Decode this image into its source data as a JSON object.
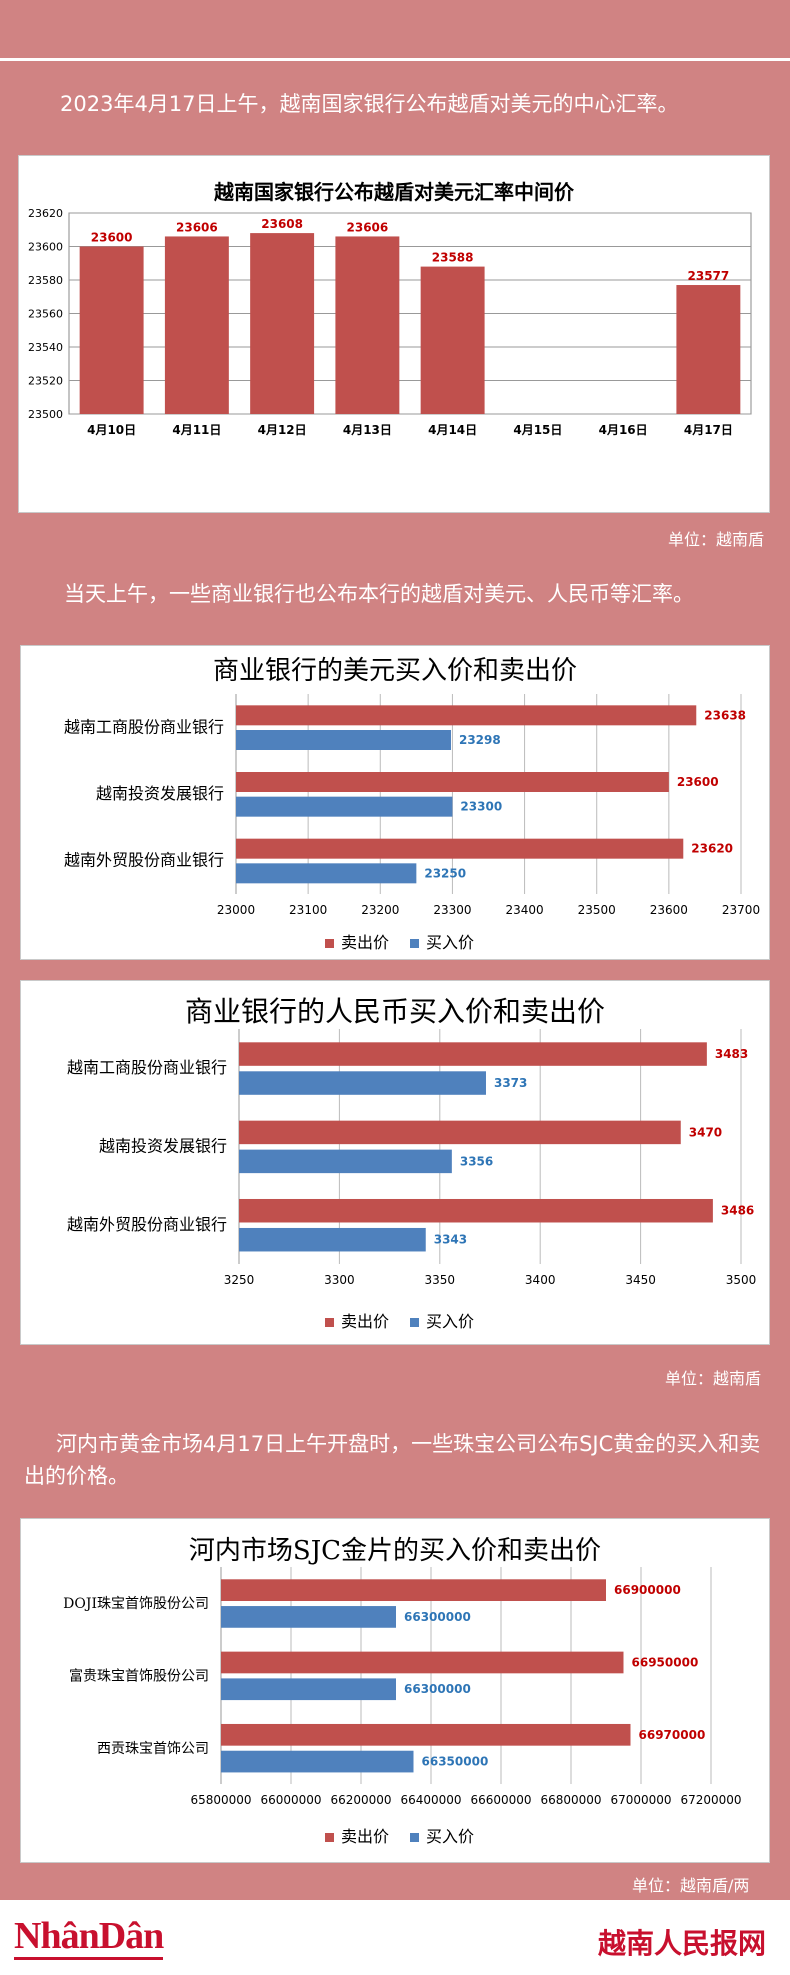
{
  "intro1": "2023年4月17日上午，越南国家银行公布越盾对美元的中心汇率。",
  "intro2": "当天上午，一些商业银行也公布本行的越盾对美元、人民币等汇率。",
  "intro3": "河内市黄金市场4月17日上午开盘时，一些珠宝公司公布SJC黄金的买入和卖出的价格。",
  "unit1": "单位：越南盾",
  "unit2": "单位：越南盾",
  "unit3": "单位：越南盾/两",
  "footer": {
    "logo_left": "NhânDân",
    "logo_right": "越南人民报网"
  },
  "colors": {
    "red": "#c0504d",
    "blue": "#4f81bd",
    "red_label": "#c00000",
    "blue_label": "#2e75b6"
  },
  "chart_data": [
    {
      "type": "bar",
      "title": "越南国家银行公布越盾对美元汇率中间价",
      "categories": [
        "4月10日",
        "4月11日",
        "4月12日",
        "4月13日",
        "4月14日",
        "4月15日",
        "4月16日",
        "4月17日"
      ],
      "values": [
        23600,
        23606,
        23608,
        23606,
        23588,
        null,
        null,
        23577
      ],
      "value_labels": [
        "23600",
        "23606",
        "23608",
        "23606",
        "23588",
        "",
        "",
        "23577"
      ],
      "ylim": [
        23500,
        23620
      ],
      "yticks": [
        "23500",
        "23520",
        "23540",
        "23560",
        "23580",
        "23600",
        "23620"
      ],
      "grid": true
    },
    {
      "type": "bar",
      "orientation": "horizontal",
      "title": "商业银行的美元买入价和卖出价",
      "categories": [
        "越南工商股份商业银行",
        "越南投资发展银行",
        "越南外贸股份商业银行"
      ],
      "series": [
        {
          "name": "卖出价",
          "values": [
            23638,
            23600,
            23620
          ]
        },
        {
          "name": "买入价",
          "values": [
            23298,
            23300,
            23250
          ]
        }
      ],
      "xlim": [
        23000,
        23700
      ],
      "xticks": [
        "23000",
        "23100",
        "23200",
        "23300",
        "23400",
        "23500",
        "23600",
        "23700"
      ],
      "legend": "bottom",
      "grid": true
    },
    {
      "type": "bar",
      "orientation": "horizontal",
      "title": "商业银行的人民币买入价和卖出价",
      "categories": [
        "越南工商股份商业银行",
        "越南投资发展银行",
        "越南外贸股份商业银行"
      ],
      "series": [
        {
          "name": "卖出价",
          "values": [
            3483,
            3470,
            3486
          ]
        },
        {
          "name": "买入价",
          "values": [
            3373,
            3356,
            3343
          ]
        }
      ],
      "xlim": [
        3250,
        3500
      ],
      "xticks": [
        "3250",
        "3300",
        "3350",
        "3400",
        "3450",
        "3500"
      ],
      "legend": "bottom",
      "grid": true
    },
    {
      "type": "bar",
      "orientation": "horizontal",
      "title": "河内市场SJC金片的买入价和卖出价",
      "categories": [
        "DOJI珠宝首饰股份公司",
        "富贵珠宝首饰股份公司",
        "西贡珠宝首饰公司"
      ],
      "series": [
        {
          "name": "卖出价",
          "values": [
            66900000,
            66950000,
            66970000
          ]
        },
        {
          "name": "买入价",
          "values": [
            66300000,
            66300000,
            66350000
          ]
        }
      ],
      "xlim": [
        65800000,
        67200000
      ],
      "xticks": [
        "65800000",
        "66000000",
        "66200000",
        "66400000",
        "66600000",
        "66800000",
        "67000000",
        "67200000"
      ],
      "legend": "bottom",
      "grid": true
    }
  ]
}
